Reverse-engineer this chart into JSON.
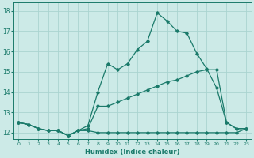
{
  "xlabel": "Humidex (Indice chaleur)",
  "bg_color": "#cceae7",
  "grid_color": "#aad4d0",
  "line_color": "#1a7a6a",
  "xlim": [
    -0.5,
    23.5
  ],
  "ylim": [
    11.7,
    18.4
  ],
  "xticks": [
    0,
    1,
    2,
    3,
    4,
    5,
    6,
    7,
    8,
    9,
    10,
    11,
    12,
    13,
    14,
    15,
    16,
    17,
    18,
    19,
    20,
    21,
    22,
    23
  ],
  "yticks": [
    12,
    13,
    14,
    15,
    16,
    17,
    18
  ],
  "line1_y": [
    12.5,
    12.4,
    12.2,
    12.1,
    12.1,
    11.85,
    12.1,
    12.1,
    12.0,
    12.0,
    12.0,
    12.0,
    12.0,
    12.0,
    12.0,
    12.0,
    12.0,
    12.0,
    12.0,
    12.0,
    12.0,
    12.0,
    12.0,
    12.2
  ],
  "line2_y": [
    12.5,
    12.4,
    12.2,
    12.1,
    12.1,
    11.85,
    12.1,
    12.2,
    13.3,
    13.3,
    13.5,
    13.7,
    13.9,
    14.1,
    14.3,
    14.5,
    14.6,
    14.8,
    15.0,
    15.1,
    15.1,
    12.5,
    12.2,
    12.2
  ],
  "line3_y": [
    12.5,
    12.4,
    12.2,
    12.1,
    12.1,
    11.85,
    12.1,
    12.35,
    14.0,
    15.4,
    15.1,
    15.4,
    16.1,
    16.5,
    17.9,
    17.5,
    17.0,
    16.9,
    15.9,
    15.15,
    14.2,
    12.5,
    12.2,
    12.2
  ]
}
